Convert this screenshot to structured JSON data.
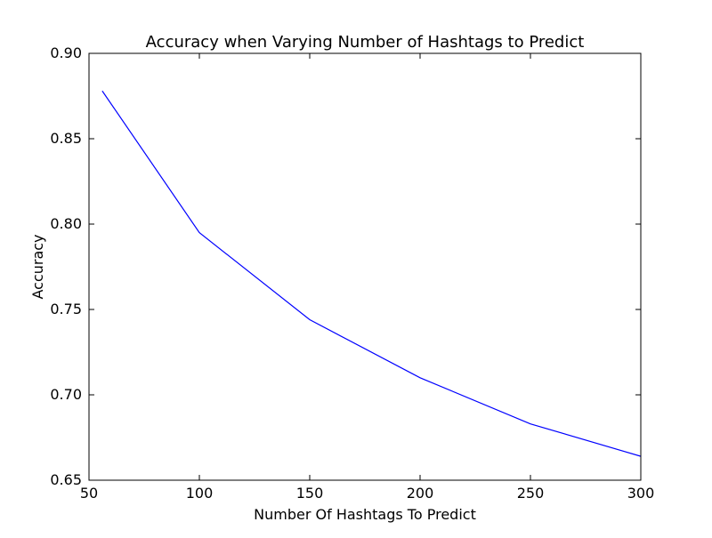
{
  "chart_data": {
    "type": "line",
    "title": "Accuracy when Varying Number of Hashtags to Predict",
    "xlabel": "Number Of Hashtags To Predict",
    "ylabel": "Accuracy",
    "xlim": [
      50,
      300
    ],
    "ylim": [
      0.65,
      0.9
    ],
    "xticks": [
      "50",
      "100",
      "150",
      "200",
      "250",
      "300"
    ],
    "yticks": [
      "0.65",
      "0.70",
      "0.75",
      "0.80",
      "0.85",
      "0.90"
    ],
    "grid": false,
    "series": [
      {
        "color": "#0000ff",
        "x": [
          56,
          100,
          150,
          200,
          250,
          300
        ],
        "y": [
          0.878,
          0.795,
          0.744,
          0.71,
          0.683,
          0.664
        ]
      }
    ]
  }
}
